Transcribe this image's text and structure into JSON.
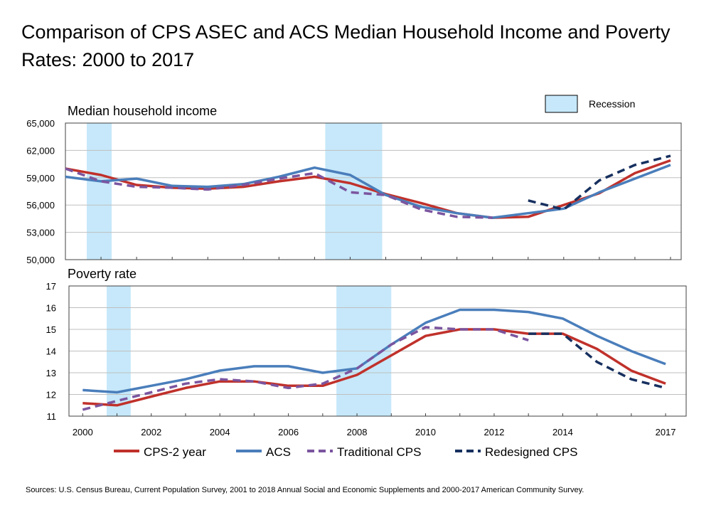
{
  "title": "Comparison of CPS ASEC and ACS Median Household Income and Poverty Rates:  2000 to 2017",
  "source": "Sources: U.S. Census Bureau, Current Population Survey, 2001 to 2018 Annual Social and Economic Supplements and 2000-2017 American Community Survey.",
  "recession_legend_label": "Recession",
  "colors": {
    "cps2": "#c0312b",
    "acs": "#4a7ebb",
    "traditional": "#7b559f",
    "redesigned": "#17305f",
    "recession": "#c6e8fa",
    "grid": "#bfbfbf"
  },
  "chart_data": [
    {
      "type": "line",
      "title": "Median household income",
      "ylim": [
        50000,
        65000
      ],
      "y_ticks": [
        "50,000",
        "53,000",
        "56,000",
        "59,000",
        "62,000",
        "65,000"
      ],
      "y_tick_values": [
        50000,
        53000,
        56000,
        59000,
        62000,
        65000
      ],
      "recessions": [
        [
          2000.6,
          2001.3
        ],
        [
          2007.3,
          2008.9
        ]
      ],
      "series": [
        {
          "name": "CPS-2 year",
          "key": "cps2",
          "style": "solid",
          "x": [
            2000,
            2001,
            2002,
            2003,
            2004,
            2005,
            2006,
            2007,
            2008,
            2009,
            2010,
            2011,
            2012,
            2013,
            2014,
            2015,
            2016,
            2017
          ],
          "y": [
            60000,
            59300,
            58200,
            57900,
            57800,
            58000,
            58600,
            59100,
            58400,
            57200,
            56200,
            55100,
            54600,
            54700,
            56000,
            57300,
            59500,
            60900
          ]
        },
        {
          "name": "ACS",
          "key": "acs",
          "style": "solid",
          "x": [
            2000,
            2001,
            2002,
            2003,
            2004,
            2005,
            2006,
            2007,
            2008,
            2009,
            2010,
            2011,
            2012,
            2013,
            2014,
            2015,
            2016,
            2017
          ],
          "y": [
            59100,
            58600,
            58900,
            58100,
            58000,
            58300,
            59100,
            60100,
            59300,
            57100,
            55800,
            55100,
            54600,
            55100,
            55600,
            57400,
            58900,
            60400
          ]
        },
        {
          "name": "Traditional CPS",
          "key": "traditional",
          "style": "dashed",
          "x": [
            2000,
            2001,
            2002,
            2003,
            2004,
            2005,
            2006,
            2007,
            2008,
            2009,
            2010,
            2011,
            2012
          ],
          "y": [
            60000,
            58600,
            58000,
            57900,
            57700,
            58200,
            58900,
            59500,
            57400,
            57100,
            55500,
            54700,
            54600
          ]
        },
        {
          "name": "Redesigned CPS",
          "key": "redesigned",
          "style": "dashed",
          "x": [
            2013,
            2014,
            2015,
            2016,
            2017
          ],
          "y": [
            56500,
            55500,
            58700,
            60400,
            61400
          ]
        }
      ]
    },
    {
      "type": "line",
      "title": "Poverty rate",
      "ylim": [
        11,
        17
      ],
      "y_ticks": [
        "11",
        "12",
        "13",
        "14",
        "15",
        "16",
        "17"
      ],
      "y_tick_values": [
        11,
        12,
        13,
        14,
        15,
        16,
        17
      ],
      "x_tick_labels": [
        "2000",
        "2002",
        "2004",
        "2006",
        "2008",
        "2010",
        "2012",
        "2014",
        "2017"
      ],
      "x_tick_values": [
        2000,
        2002,
        2004,
        2006,
        2008,
        2010,
        2012,
        2014,
        2017
      ],
      "recessions": [
        [
          2000.7,
          2001.4
        ],
        [
          2007.4,
          2009.0
        ]
      ],
      "series": [
        {
          "name": "CPS-2 year",
          "key": "cps2",
          "style": "solid",
          "x": [
            2000,
            2001,
            2002,
            2003,
            2004,
            2005,
            2006,
            2007,
            2008,
            2009,
            2010,
            2011,
            2012,
            2013,
            2014,
            2015,
            2016,
            2017
          ],
          "y": [
            11.6,
            11.5,
            11.9,
            12.3,
            12.6,
            12.6,
            12.4,
            12.4,
            12.9,
            13.8,
            14.7,
            15.0,
            15.0,
            14.8,
            14.8,
            14.1,
            13.1,
            12.5
          ]
        },
        {
          "name": "ACS",
          "key": "acs",
          "style": "solid",
          "x": [
            2000,
            2001,
            2002,
            2003,
            2004,
            2005,
            2006,
            2007,
            2008,
            2009,
            2010,
            2011,
            2012,
            2013,
            2014,
            2015,
            2016,
            2017
          ],
          "y": [
            12.2,
            12.1,
            12.4,
            12.7,
            13.1,
            13.3,
            13.3,
            13.0,
            13.2,
            14.3,
            15.3,
            15.9,
            15.9,
            15.8,
            15.5,
            14.7,
            14.0,
            13.4
          ]
        },
        {
          "name": "Traditional CPS",
          "key": "traditional",
          "style": "dashed",
          "x": [
            2000,
            2001,
            2002,
            2003,
            2004,
            2005,
            2006,
            2007,
            2008,
            2009,
            2010,
            2011,
            2012,
            2013
          ],
          "y": [
            11.3,
            11.7,
            12.1,
            12.5,
            12.7,
            12.6,
            12.3,
            12.5,
            13.2,
            14.3,
            15.1,
            15.0,
            15.0,
            14.5
          ]
        },
        {
          "name": "Redesigned CPS",
          "key": "redesigned",
          "style": "dashed",
          "x": [
            2013,
            2014,
            2015,
            2016,
            2017
          ],
          "y": [
            14.8,
            14.8,
            13.5,
            12.7,
            12.3
          ]
        }
      ]
    }
  ]
}
